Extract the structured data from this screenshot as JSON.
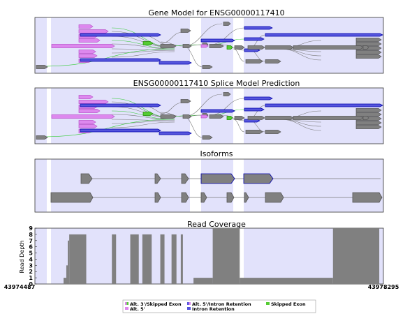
{
  "colors": {
    "panel_bg": "#e2e2fb",
    "gap": "#ffffff",
    "exon": "#808080",
    "exon_edge": "#555555",
    "alt3": "#dd88ee",
    "alt3_edge": "#bb55cc",
    "alt5": "#5555dd",
    "alt5_edge": "#0000aa",
    "skipped": "#55cc33",
    "skipped_edge": "#228800",
    "splice_green": "#33cc33",
    "splice_gray": "#777777"
  },
  "panels": {
    "gene_model_title": "Gene Model for ENSG00000117410",
    "splice_model_title": "ENSG00000117410 Splice Model Prediction",
    "isoforms_title": "Isoforms",
    "coverage_title": "Read Coverage"
  },
  "legend": {
    "items": [
      {
        "label": "Alt. 3'/Skipped Exon",
        "icon": "half-pink-green-swatch"
      },
      {
        "label": "Alt. 5'",
        "icon": "pink-swatch"
      },
      {
        "label": "Alt. 5'/Intron Retention",
        "icon": "half-blue-pink-swatch"
      },
      {
        "label": "Intron Retention",
        "icon": "blue-swatch"
      },
      {
        "label": "Skipped Exon",
        "icon": "green-swatch"
      }
    ]
  },
  "chart_data": [
    {
      "type": "other",
      "title": "Gene Model for ENSG00000117410",
      "genomic_range": [
        43974487,
        43978295
      ]
    },
    {
      "type": "other",
      "title": "ENSG00000117410 Splice Model Prediction",
      "genomic_range": [
        43974487,
        43978295
      ]
    },
    {
      "type": "other",
      "title": "Isoforms",
      "genomic_range": [
        43974487,
        43978295
      ]
    },
    {
      "type": "area",
      "title": "Read Coverage",
      "ylabel": "Read Depth",
      "xlim": [
        43974487,
        43978295
      ],
      "ylim": [
        0,
        9
      ],
      "y_ticks": [
        "0",
        "1",
        "2",
        "3",
        "4",
        "5",
        "6",
        "7",
        "8",
        "9"
      ],
      "x_tick_labels": [
        "43974487",
        "43978295"
      ],
      "coverage": [
        {
          "start": 43974800,
          "end": 43974830,
          "depth": 1
        },
        {
          "start": 43974830,
          "end": 43974846,
          "depth": 3
        },
        {
          "start": 43974846,
          "end": 43974862,
          "depth": 7
        },
        {
          "start": 43974862,
          "end": 43975048,
          "depth": 8
        },
        {
          "start": 43975328,
          "end": 43975374,
          "depth": 8
        },
        {
          "start": 43975529,
          "end": 43975622,
          "depth": 8
        },
        {
          "start": 43975661,
          "end": 43975763,
          "depth": 8
        },
        {
          "start": 43975857,
          "end": 43975903,
          "depth": 8
        },
        {
          "start": 43975980,
          "end": 43976034,
          "depth": 8
        },
        {
          "start": 43976081,
          "end": 43976104,
          "depth": 8
        },
        {
          "start": 43976220,
          "end": 43976430,
          "depth": 1
        },
        {
          "start": 43976430,
          "end": 43976725,
          "depth": 9
        },
        {
          "start": 43976725,
          "end": 43977744,
          "depth": 1
        },
        {
          "start": 43977744,
          "end": 43978250,
          "depth": 9
        }
      ]
    }
  ]
}
